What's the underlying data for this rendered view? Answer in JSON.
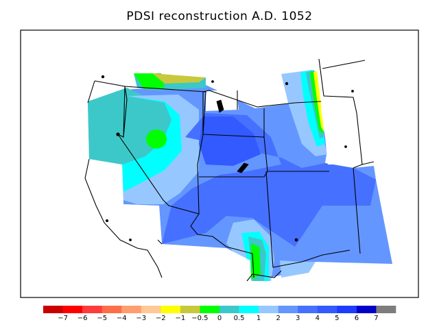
{
  "title": "PDSI reconstruction A.D. 1052",
  "legend": {
    "colors": [
      "#c80000",
      "#ff0000",
      "#ff3c3c",
      "#ff6e46",
      "#ff9d6e",
      "#ffc896",
      "#ffff00",
      "#c8c83c",
      "#00ff00",
      "#3cc8c8",
      "#00ffff",
      "#96c8ff",
      "#6496ff",
      "#4670ff",
      "#325aff",
      "#1e3cff",
      "#0000c8",
      "#7d7d7d"
    ],
    "labels": [
      "−7",
      "−6",
      "−5",
      "−4",
      "−3",
      "−2",
      "−1",
      "−0.5",
      "0",
      "0.5",
      "1",
      "2",
      "3",
      "4",
      "5",
      "6",
      "7"
    ]
  }
}
